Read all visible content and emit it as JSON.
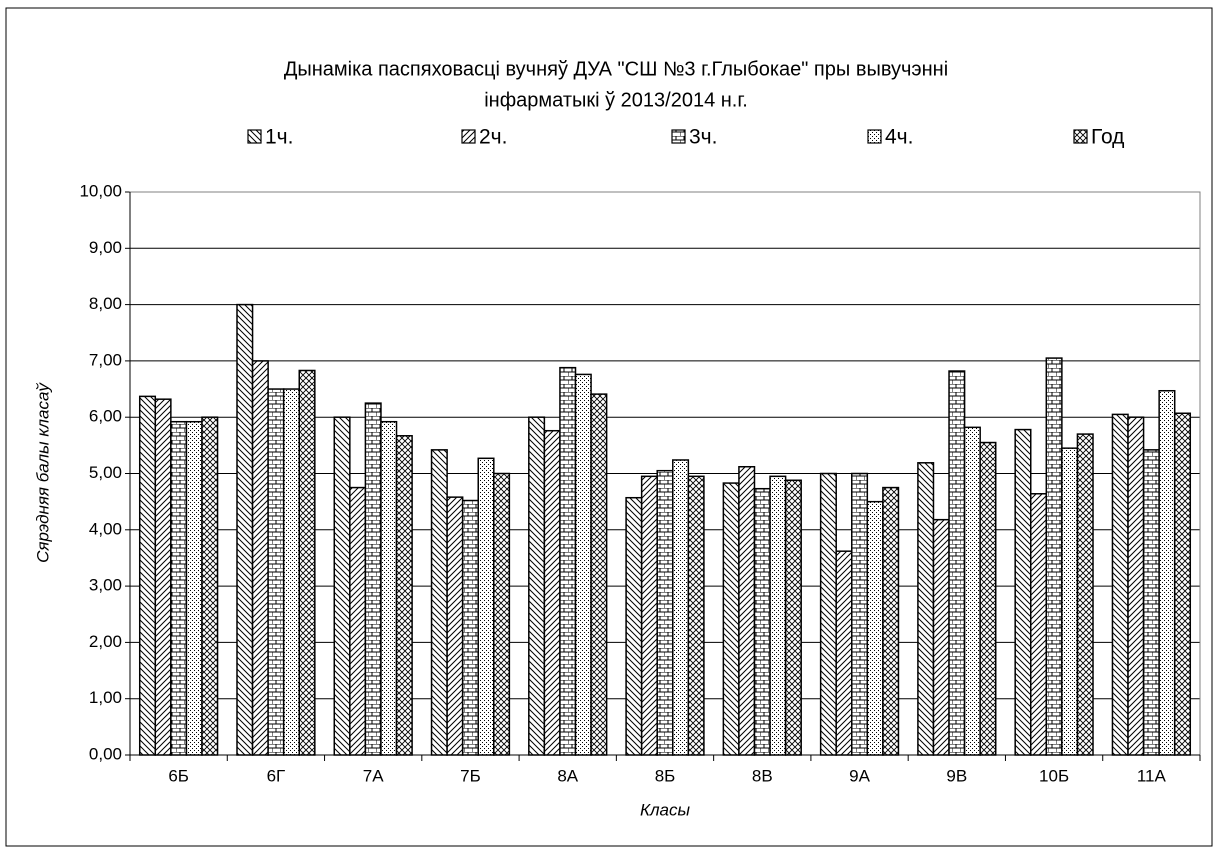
{
  "chart_data": {
    "type": "bar",
    "title": [
      "Дынаміка паспяховасці вучняў ДУА \"СШ №3 г.Глыбокае\" пры вывучэнні",
      "інфарматыкі ў 2013/2014 н.г."
    ],
    "x_label": "Класы",
    "y_label": "Сярэдняя балы класаў",
    "categories": [
      "6Б",
      "6Г",
      "7А",
      "7Б",
      "8А",
      "8Б",
      "8В",
      "9А",
      "9В",
      "10Б",
      "11А"
    ],
    "series": [
      {
        "name": "1ч.",
        "color": "#000000",
        "pattern": "diagonal-down",
        "values": [
          6.37,
          8.0,
          6.0,
          5.42,
          6.0,
          4.57,
          4.83,
          5.0,
          5.19,
          5.78,
          6.05
        ]
      },
      {
        "name": "2ч.",
        "color": "#000000",
        "pattern": "diagonal-up",
        "values": [
          6.32,
          7.0,
          4.75,
          4.58,
          5.76,
          4.95,
          5.12,
          3.62,
          4.18,
          4.64,
          6.0
        ]
      },
      {
        "name": "3ч.",
        "color": "#000000",
        "pattern": "brick",
        "values": [
          5.92,
          6.5,
          6.25,
          4.52,
          6.88,
          5.05,
          4.73,
          5.0,
          6.82,
          7.05,
          5.42
        ]
      },
      {
        "name": "4ч.",
        "color": "#000000",
        "pattern": "dots",
        "values": [
          5.92,
          6.5,
          5.92,
          5.27,
          6.76,
          5.24,
          4.95,
          4.5,
          5.82,
          5.45,
          6.47
        ]
      },
      {
        "name": "Год",
        "color": "#000000",
        "pattern": "cross",
        "values": [
          6.0,
          6.83,
          5.67,
          5.0,
          6.41,
          4.95,
          4.88,
          4.75,
          5.55,
          5.7,
          6.07
        ]
      }
    ],
    "ylim": [
      0,
      10
    ],
    "yticks": [
      {
        "value": 0,
        "label": "0,00"
      },
      {
        "value": 1,
        "label": "1,00"
      },
      {
        "value": 2,
        "label": "2,00"
      },
      {
        "value": 3,
        "label": "3,00"
      },
      {
        "value": 4,
        "label": "4,00"
      },
      {
        "value": 5,
        "label": "5,00"
      },
      {
        "value": 6,
        "label": "6,00"
      },
      {
        "value": 7,
        "label": "7,00"
      },
      {
        "value": 8,
        "label": "8,00"
      },
      {
        "value": 9,
        "label": "9,00"
      },
      {
        "value": 10,
        "label": "10,00"
      }
    ],
    "grid": true,
    "legend": "top"
  }
}
